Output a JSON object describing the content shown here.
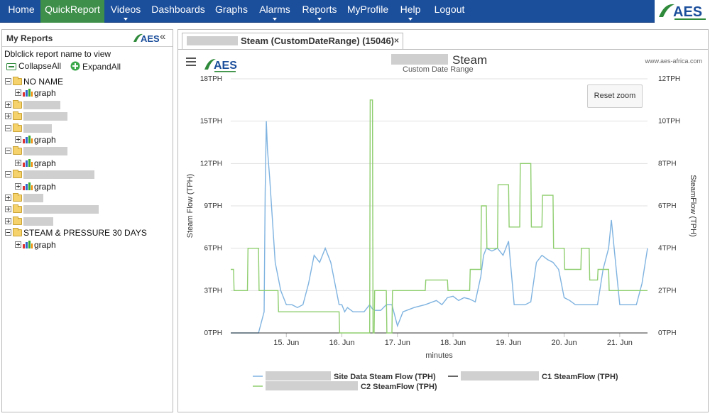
{
  "nav": {
    "items": [
      {
        "label": "Home",
        "caret": false,
        "active": false
      },
      {
        "label": "QuickReport",
        "caret": false,
        "active": true
      },
      {
        "label": "Videos",
        "caret": true,
        "active": false
      },
      {
        "label": "Dashboards",
        "caret": false,
        "active": false
      },
      {
        "label": "Graphs",
        "caret": false,
        "active": false
      },
      {
        "label": "Alarms",
        "caret": true,
        "active": false
      },
      {
        "label": "Reports",
        "caret": true,
        "active": false
      },
      {
        "label": "MyProfile",
        "caret": false,
        "active": false
      },
      {
        "label": "Help",
        "caret": true,
        "active": false
      },
      {
        "label": "Logout",
        "caret": false,
        "active": false
      }
    ],
    "logo_text": "AES",
    "bg_color": "#1b4e9b",
    "active_color": "#3e8f4a"
  },
  "left_panel": {
    "title": "My Reports",
    "logo_text": "AES",
    "collapse_glyph": "«",
    "hint": "Dblclick report name to view",
    "collapse_all": "CollapseAll",
    "expand_all": "ExpandAll",
    "tree": [
      {
        "type": "folder",
        "expanded": true,
        "label": "NO NAME"
      },
      {
        "type": "report",
        "label": "graph"
      },
      {
        "type": "folder",
        "expanded": false,
        "label": ""
      },
      {
        "type": "folder",
        "expanded": false,
        "label": ""
      },
      {
        "type": "folder",
        "expanded": true,
        "label": ""
      },
      {
        "type": "report",
        "label": "graph"
      },
      {
        "type": "folder",
        "expanded": true,
        "label": ""
      },
      {
        "type": "report",
        "label": "graph"
      },
      {
        "type": "folder",
        "expanded": true,
        "label": ""
      },
      {
        "type": "report",
        "label": "graph"
      },
      {
        "type": "folder",
        "expanded": false,
        "label": ""
      },
      {
        "type": "folder",
        "expanded": false,
        "label": ""
      },
      {
        "type": "folder",
        "expanded": false,
        "label": ""
      },
      {
        "type": "folder",
        "expanded": true,
        "label": "STEAM & PRESSURE 30 DAYS"
      },
      {
        "type": "report",
        "label": "graph"
      }
    ]
  },
  "tab": {
    "label": "Steam (CustomDateRange) (15046)",
    "close": "×"
  },
  "chart_header": {
    "logo_text": "AES",
    "title": "Steam",
    "subtitle": "Custom Date Range",
    "credit": "www.aes-africa.com",
    "reset_zoom": "Reset zoom"
  },
  "chart_data": {
    "type": "line",
    "xlabel": "minutes",
    "ylabel_left": "Steam Flow (TPH)",
    "ylabel_right": "SteamFlow (TPH)",
    "x_range_days": [
      "14. Jun",
      "21. Jun"
    ],
    "x_ticks": [
      "15. Jun",
      "16. Jun",
      "17. Jun",
      "18. Jun",
      "19. Jun",
      "20. Jun",
      "21. Jun"
    ],
    "y_left": {
      "min": 0,
      "max": 18,
      "ticks": [
        "0TPH",
        "3TPH",
        "6TPH",
        "9TPH",
        "12TPH",
        "15TPH",
        "18TPH"
      ]
    },
    "y_right": {
      "min": 0,
      "max": 12,
      "ticks": [
        "0TPH",
        "2TPH",
        "4TPH",
        "6TPH",
        "8TPH",
        "10TPH",
        "12TPH"
      ]
    },
    "grid": true,
    "legend_position": "bottom",
    "series": [
      {
        "name": "Site Data Steam Flow (TPH)",
        "axis": "left",
        "color": "#7fb3e0",
        "x": [
          14.0,
          14.3,
          14.5,
          14.6,
          14.62,
          14.64,
          14.66,
          14.7,
          14.75,
          14.8,
          14.85,
          14.9,
          15.0,
          15.1,
          15.2,
          15.3,
          15.4,
          15.5,
          15.6,
          15.7,
          15.8,
          15.9,
          15.95,
          16.0,
          16.05,
          16.1,
          16.2,
          16.3,
          16.4,
          16.5,
          16.55,
          16.6,
          16.7,
          16.8,
          16.9,
          17.0,
          17.1,
          17.3,
          17.5,
          17.7,
          17.8,
          17.9,
          18.0,
          18.1,
          18.2,
          18.3,
          18.4,
          18.5,
          18.55,
          18.6,
          18.7,
          18.8,
          18.9,
          19.0,
          19.1,
          19.2,
          19.3,
          19.4,
          19.5,
          19.6,
          19.7,
          19.8,
          19.9,
          20.0,
          20.1,
          20.2,
          20.3,
          20.4,
          20.5,
          20.6,
          20.7,
          20.8,
          20.85,
          20.9,
          21.0,
          21.1,
          21.2,
          21.3,
          21.4,
          21.5
        ],
        "y": [
          0,
          0,
          0,
          1.5,
          10,
          15,
          13,
          11,
          8,
          5,
          4,
          3,
          2,
          2,
          1.8,
          2,
          3.5,
          5.5,
          5,
          6,
          5,
          3,
          2,
          2,
          1.5,
          1.8,
          1.5,
          1.5,
          1.5,
          2,
          1.7,
          1.6,
          1.6,
          2,
          2,
          0.5,
          1.5,
          1.8,
          2,
          2.3,
          2,
          2.5,
          2.6,
          2.3,
          2.5,
          2.4,
          2.2,
          4,
          5.5,
          6,
          5.8,
          6,
          5.5,
          6.5,
          2,
          2,
          2,
          2.2,
          5,
          5.5,
          5.2,
          5,
          4.5,
          2.5,
          2.3,
          2,
          2,
          2,
          2,
          2,
          4.5,
          6,
          8,
          6,
          2,
          2,
          2,
          2,
          3.5,
          6
        ]
      },
      {
        "name": "C1 SteamFlow (TPH)",
        "axis": "right",
        "color": "#333333",
        "x": [
          14.0,
          21.5
        ],
        "y": [
          0,
          0
        ]
      },
      {
        "name": "C2 SteamFlow (TPH)",
        "axis": "right",
        "color": "#8fce6f",
        "x": [
          14.0,
          14.05,
          14.06,
          14.3,
          14.31,
          14.5,
          14.51,
          14.85,
          14.86,
          15.2,
          15.21,
          15.8,
          15.81,
          15.95,
          15.96,
          16.5,
          16.51,
          16.55,
          16.56,
          16.58,
          16.59,
          16.8,
          16.81,
          16.9,
          16.91,
          17.5,
          17.51,
          17.9,
          17.91,
          18.3,
          18.31,
          18.5,
          18.51,
          18.6,
          18.61,
          18.8,
          18.81,
          19.0,
          19.01,
          19.2,
          19.21,
          19.4,
          19.41,
          19.6,
          19.61,
          19.8,
          19.81,
          20.0,
          20.01,
          20.3,
          20.31,
          20.45,
          20.46,
          20.6,
          20.61,
          20.8,
          20.81,
          21.0,
          21.01,
          21.5
        ],
        "y": [
          3,
          3,
          2,
          2,
          4,
          4,
          2,
          2,
          1,
          1,
          1,
          1,
          1,
          1,
          0,
          0,
          11,
          11,
          0,
          0,
          2,
          2,
          0,
          0,
          2,
          2,
          2.5,
          2.5,
          2,
          2,
          3,
          3,
          6,
          6,
          4,
          4,
          7,
          7,
          5,
          5,
          8,
          8,
          5,
          5,
          6.5,
          6.5,
          4,
          4,
          3,
          3,
          4,
          4,
          2.5,
          2.5,
          3,
          3,
          2,
          2,
          2,
          2
        ]
      }
    ]
  }
}
